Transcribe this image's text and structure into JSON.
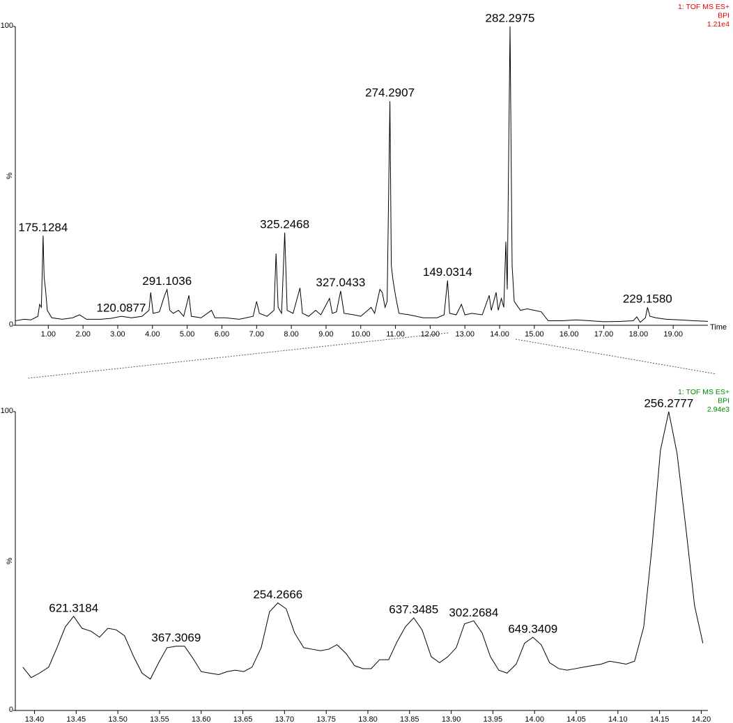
{
  "chart_data": [
    {
      "type": "line",
      "info": [
        "1: TOF MS ES+",
        "BPI",
        "1.21e4"
      ],
      "info_color": "#e00000",
      "ylabel": "%",
      "xlabel": "Time",
      "color": "#000000",
      "xlim": [
        0.05,
        20.0
      ],
      "ylim": [
        0,
        100
      ],
      "yticks": [
        0,
        100
      ],
      "xticks": [
        {
          "value": 1,
          "label": "1.00"
        },
        {
          "value": 2,
          "label": "2.00"
        },
        {
          "value": 3,
          "label": "3.00"
        },
        {
          "value": 4,
          "label": "4.00"
        },
        {
          "value": 5,
          "label": "5.00"
        },
        {
          "value": 6,
          "label": "6.00"
        },
        {
          "value": 7,
          "label": "7.00"
        },
        {
          "value": 8,
          "label": "8.00"
        },
        {
          "value": 9,
          "label": "9.00"
        },
        {
          "value": 10,
          "label": "10.00"
        },
        {
          "value": 11,
          "label": "11.00"
        },
        {
          "value": 12,
          "label": "12.00"
        },
        {
          "value": 13,
          "label": "13.00"
        },
        {
          "value": 14,
          "label": "14.00"
        },
        {
          "value": 15,
          "label": "15.00"
        },
        {
          "value": 16,
          "label": "16.00"
        },
        {
          "value": 17,
          "label": "17.00"
        },
        {
          "value": 18,
          "label": "18.00"
        },
        {
          "value": 19,
          "label": "19.00"
        }
      ],
      "x": [
        0.05,
        0.3,
        0.5,
        0.7,
        0.75,
        0.8,
        0.85,
        0.88,
        0.92,
        0.97,
        1.1,
        1.4,
        1.7,
        1.9,
        2.1,
        2.5,
        2.8,
        3.1,
        3.4,
        3.7,
        3.9,
        3.95,
        4.02,
        4.2,
        4.35,
        4.42,
        4.5,
        4.6,
        4.75,
        4.9,
        5.05,
        5.12,
        5.4,
        5.7,
        5.8,
        6.1,
        6.5,
        6.9,
        7.0,
        7.08,
        7.3,
        7.5,
        7.56,
        7.62,
        7.72,
        7.81,
        7.88,
        8.05,
        8.25,
        8.32,
        8.5,
        8.7,
        8.85,
        9.1,
        9.18,
        9.3,
        9.42,
        9.52,
        9.8,
        10.0,
        10.3,
        10.4,
        10.55,
        10.62,
        10.7,
        10.76,
        10.84,
        10.88,
        10.93,
        11.0,
        11.1,
        11.4,
        11.8,
        12.2,
        12.4,
        12.5,
        12.56,
        12.75,
        12.9,
        13.0,
        13.2,
        13.5,
        13.7,
        13.76,
        13.9,
        13.96,
        14.05,
        14.12,
        14.18,
        14.22,
        14.3,
        14.36,
        14.42,
        14.6,
        14.8,
        15.0,
        15.2,
        15.3,
        15.4,
        15.8,
        16.2,
        16.6,
        17.0,
        17.5,
        17.85,
        17.95,
        18.05,
        18.2,
        18.26,
        18.33,
        18.5,
        18.8,
        19.2,
        19.6,
        20.0
      ],
      "values": [
        1.5,
        2,
        1.8,
        3,
        7,
        6,
        30,
        16,
        12,
        5,
        2.5,
        2,
        2.5,
        3.5,
        2,
        2,
        2.3,
        3,
        2.5,
        3,
        5,
        11,
        4,
        4.5,
        10,
        12,
        5,
        4,
        5,
        3,
        10,
        3,
        2.5,
        5,
        2.5,
        2.5,
        2,
        3,
        8,
        4,
        3,
        5,
        24,
        6,
        4,
        31,
        5,
        4,
        12.5,
        4,
        3,
        5,
        3.5,
        9,
        4,
        4.5,
        11.5,
        4,
        3.5,
        3,
        6,
        4,
        12,
        11,
        6,
        8,
        75,
        20,
        15,
        10,
        4,
        3.5,
        2.5,
        2.5,
        3.5,
        15,
        4,
        3.5,
        7,
        3.5,
        4,
        3.5,
        10,
        5,
        11,
        5,
        9,
        6,
        28,
        12,
        100,
        20,
        8,
        5,
        5.5,
        5,
        4.5,
        3,
        1.5,
        1.5,
        1.8,
        1.5,
        1.2,
        1.3,
        1.5,
        2.8,
        1,
        2.5,
        6,
        3,
        2.5,
        2,
        1.8,
        1.5,
        1.3
      ],
      "annotations": [
        {
          "text": "175.1284",
          "x": 0.85,
          "y": 30
        },
        {
          "text": "120.0877",
          "x": 3.1,
          "y": 3
        },
        {
          "text": "291.1036",
          "x": 4.42,
          "y": 12
        },
        {
          "text": "325.2468",
          "x": 7.81,
          "y": 31
        },
        {
          "text": "327.0433",
          "x": 9.42,
          "y": 11.5
        },
        {
          "text": "274.2907",
          "x": 10.84,
          "y": 75
        },
        {
          "text": "149.0314",
          "x": 12.5,
          "y": 15
        },
        {
          "text": "282.2975",
          "x": 14.3,
          "y": 100
        },
        {
          "text": "229.1580",
          "x": 18.26,
          "y": 6
        }
      ]
    },
    {
      "type": "line",
      "info": [
        "1: TOF MS ES+",
        "BPI",
        "2.94e3"
      ],
      "info_color": "#008a00",
      "ylabel": "%",
      "color": "#000000",
      "xlim": [
        13.377,
        14.208
      ],
      "ylim": [
        0,
        100
      ],
      "yticks": [
        0,
        100
      ],
      "xticks": [
        {
          "value": 13.4,
          "label": "13.40"
        },
        {
          "value": 13.45,
          "label": "13.45"
        },
        {
          "value": 13.5,
          "label": "13.50"
        },
        {
          "value": 13.55,
          "label": "13.55"
        },
        {
          "value": 13.6,
          "label": "13.60"
        },
        {
          "value": 13.65,
          "label": "13.65"
        },
        {
          "value": 13.7,
          "label": "13.70"
        },
        {
          "value": 13.75,
          "label": "13.75"
        },
        {
          "value": 13.8,
          "label": "13.80"
        },
        {
          "value": 13.85,
          "label": "13.85"
        },
        {
          "value": 13.9,
          "label": "13.90"
        },
        {
          "value": 13.95,
          "label": "13.95"
        },
        {
          "value": 14,
          "label": "14.00"
        },
        {
          "value": 14.05,
          "label": "14.05"
        },
        {
          "value": 14.1,
          "label": "14.10"
        },
        {
          "value": 14.15,
          "label": "14.15"
        },
        {
          "value": 14.2,
          "label": "14.20"
        }
      ],
      "x": [
        13.386,
        13.396,
        13.406,
        13.417,
        13.427,
        13.437,
        13.447,
        13.457,
        13.468,
        13.478,
        13.488,
        13.498,
        13.508,
        13.519,
        13.529,
        13.539,
        13.549,
        13.559,
        13.57,
        13.58,
        13.59,
        13.6,
        13.61,
        13.621,
        13.631,
        13.641,
        13.651,
        13.661,
        13.672,
        13.682,
        13.692,
        13.702,
        13.712,
        13.723,
        13.733,
        13.743,
        13.753,
        13.763,
        13.774,
        13.784,
        13.794,
        13.804,
        13.814,
        13.825,
        13.835,
        13.845,
        13.855,
        13.865,
        13.876,
        13.886,
        13.896,
        13.906,
        13.916,
        13.927,
        13.937,
        13.947,
        13.957,
        13.967,
        13.978,
        13.988,
        13.998,
        14.008,
        14.018,
        14.029,
        14.039,
        14.049,
        14.059,
        14.069,
        14.08,
        14.09,
        14.1,
        14.11,
        14.12,
        14.131,
        14.141,
        14.151,
        14.161,
        14.171,
        14.182,
        14.192,
        14.202
      ],
      "values": [
        14.5,
        11,
        12.5,
        14.5,
        21,
        28,
        31.5,
        27.5,
        26.5,
        24.5,
        27.5,
        27,
        25,
        18,
        12.5,
        10.5,
        16,
        21,
        21.5,
        21.5,
        17.5,
        13,
        12.5,
        12,
        13,
        13.5,
        13,
        14.5,
        21,
        33,
        36,
        34,
        26,
        21,
        20.5,
        20,
        20.5,
        22,
        19,
        15,
        14,
        14,
        17,
        17,
        23,
        28,
        31,
        27,
        18,
        16,
        18,
        21,
        29,
        30,
        26,
        18,
        13.5,
        12.5,
        15.5,
        22.5,
        24.5,
        22,
        16,
        14,
        13.5,
        14,
        14.5,
        15,
        15.5,
        16.5,
        16,
        15.5,
        16.5,
        28,
        55,
        87,
        100,
        86,
        60,
        35,
        22.5
      ],
      "annotations": [
        {
          "text": "621.3184",
          "x": 13.447,
          "y": 31.5
        },
        {
          "text": "367.3069",
          "x": 13.57,
          "y": 21.5
        },
        {
          "text": "254.2666",
          "x": 13.692,
          "y": 36
        },
        {
          "text": "637.3485",
          "x": 13.855,
          "y": 31
        },
        {
          "text": "302.2684",
          "x": 13.927,
          "y": 30
        },
        {
          "text": "649.3409",
          "x": 13.998,
          "y": 24.5
        },
        {
          "text": "256.2777",
          "x": 14.161,
          "y": 100
        }
      ]
    }
  ]
}
